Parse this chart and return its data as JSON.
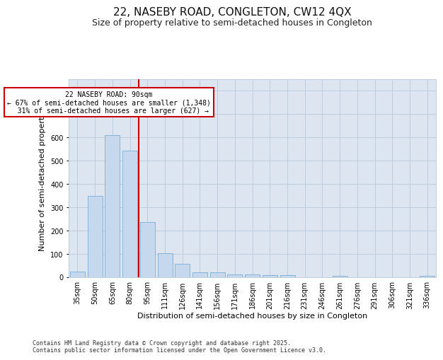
{
  "title1": "22, NASEBY ROAD, CONGLETON, CW12 4QX",
  "title2": "Size of property relative to semi-detached houses in Congleton",
  "xlabel": "Distribution of semi-detached houses by size in Congleton",
  "ylabel": "Number of semi-detached properties",
  "categories": [
    "35sqm",
    "50sqm",
    "65sqm",
    "80sqm",
    "95sqm",
    "111sqm",
    "126sqm",
    "141sqm",
    "156sqm",
    "171sqm",
    "186sqm",
    "201sqm",
    "216sqm",
    "231sqm",
    "246sqm",
    "261sqm",
    "276sqm",
    "291sqm",
    "306sqm",
    "321sqm",
    "336sqm"
  ],
  "values": [
    22,
    348,
    608,
    541,
    236,
    103,
    55,
    20,
    20,
    10,
    10,
    8,
    8,
    0,
    0,
    5,
    0,
    0,
    0,
    0,
    5
  ],
  "bar_color": "#c5d8ed",
  "bar_edge_color": "#7aafd4",
  "vline_color": "#cc0000",
  "vline_pos": 3.5,
  "annotation_text": "22 NASEBY ROAD: 90sqm\n← 67% of semi-detached houses are smaller (1,348)\n  31% of semi-detached houses are larger (627) →",
  "annotation_box_color": "#ffffff",
  "annotation_box_edge": "#cc0000",
  "ylim": [
    0,
    850
  ],
  "yticks": [
    0,
    100,
    200,
    300,
    400,
    500,
    600,
    700,
    800
  ],
  "background_color": "#dde6f0",
  "grid_color": "#b8c8d8",
  "footer": "Contains HM Land Registry data © Crown copyright and database right 2025.\nContains public sector information licensed under the Open Government Licence v3.0.",
  "title_fontsize": 11,
  "subtitle_fontsize": 9,
  "axis_label_fontsize": 8,
  "tick_fontsize": 7,
  "annotation_fontsize": 7,
  "footer_fontsize": 6
}
